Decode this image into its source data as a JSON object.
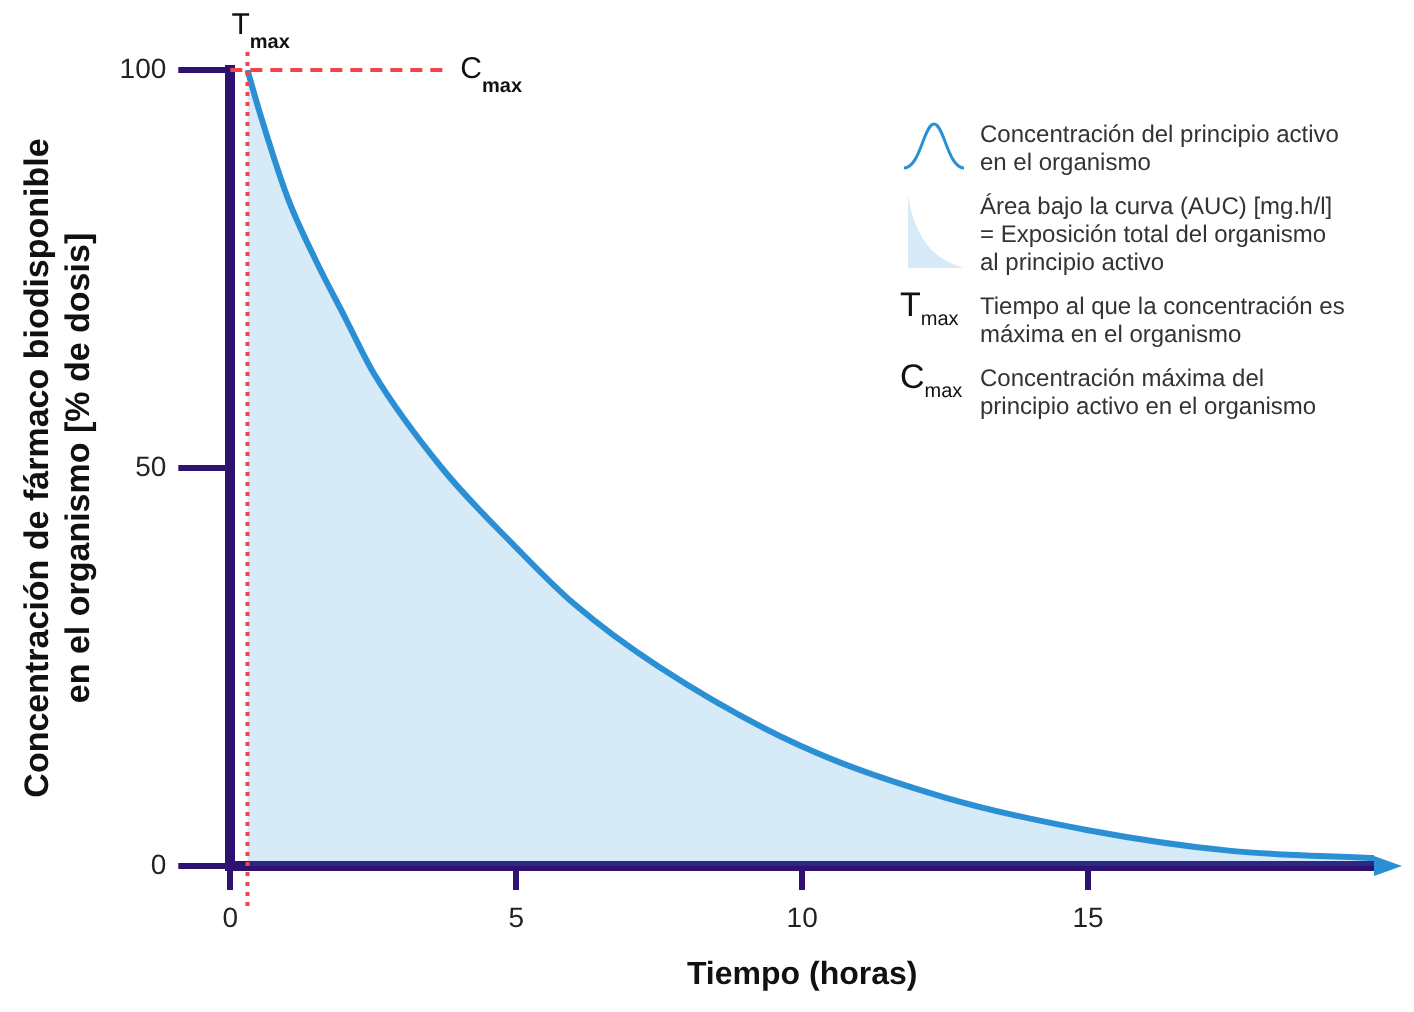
{
  "chart_data": {
    "type": "area",
    "xlabel": "Tiempo (horas)",
    "ylabel": "Concentración de fármaco biodisponible\nen el organismo [% de dosis]",
    "xlim": [
      0,
      20
    ],
    "xticks": [
      0,
      5,
      10,
      15
    ],
    "ylim": [
      0,
      100
    ],
    "yticks": [
      0,
      50,
      100
    ],
    "grid": false,
    "legend": "top right",
    "marker": "none",
    "line_style": "solid",
    "series": [
      {
        "name": "Concentración del principio activo en el organismo",
        "color": "#2b8fd4",
        "x": [
          0.3,
          0.5,
          1,
          1.5,
          2,
          2.5,
          3.7,
          5,
          6,
          7.5,
          10,
          12.5,
          15,
          17.5,
          20
        ],
        "values": [
          100,
          95,
          84,
          76,
          69,
          62,
          50,
          40,
          33,
          25,
          15,
          8.6,
          4.5,
          1.9,
          1
        ]
      }
    ],
    "ref_lines": [
      {
        "axis": "x",
        "value": 0.3,
        "label": "T$_{max}$",
        "color": "#f0444e",
        "line_style": "dotted"
      },
      {
        "axis": "y",
        "value": 100,
        "label": "C$_{max}$",
        "color": "#f0444e",
        "line_style": "dashed"
      }
    ],
    "annotations": [
      "Área bajo la curva (AUC) [mg.h/l] = Exposición total del organismo al principio activo",
      "Tiempo al que la concentración es máxima en el organismo",
      "Concentración máxima del principio activo en el organismo"
    ]
  }
}
